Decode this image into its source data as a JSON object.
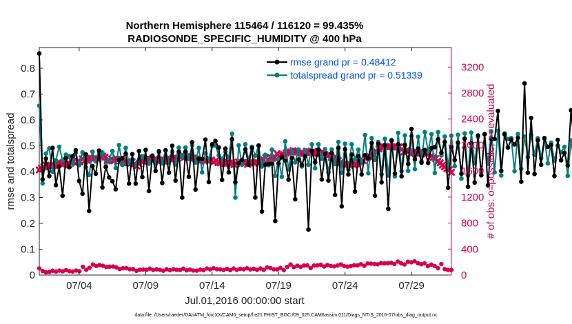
{
  "figure": {
    "title_line1": "Northern Hemisphere 115464 / 116120 = 99.435%",
    "title_line2": "RADIOSONDE_SPECIFIC_HUMIDITY @ 400 hPa",
    "xlabel": "Jul.01,2016 00:00:00 start",
    "footer": "data file: /Users/raeder/DAI/ATM_forcXX/CAM6_setup/f.e21.FHIST_BGC.f09_025.CAM6assim.011/Diags_NTrS_2016-07/obs_diag_output.nc"
  },
  "colors": {
    "rmse": "#000000",
    "spread": "#008080",
    "obs": "#d6004f",
    "legend_text": "#0050ff"
  },
  "chart_data": {
    "type": "line",
    "title": "Northern Hemisphere 115464 / 116120 = 99.435%  RADIOSONDE_SPECIFIC_HUMIDITY @ 400 hPa",
    "xlabel": "Jul.01,2016 00:00:00 start",
    "ylabel": "rmse and totalspread",
    "ylabel_right": "# of obs: o=possible; ×=evaluated",
    "x_unit": "days since Jul.01,2016 00:00:00",
    "x_step": 0.25,
    "xlim": [
      0.0,
      31.0
    ],
    "ylim": [
      0,
      0.88
    ],
    "ylim_right": [
      0,
      3500
    ],
    "xticks": [
      {
        "value": 3,
        "label": "07/04"
      },
      {
        "value": 8,
        "label": "07/09"
      },
      {
        "value": 13,
        "label": "07/14"
      },
      {
        "value": 18,
        "label": "07/19"
      },
      {
        "value": 23,
        "label": "07/24"
      },
      {
        "value": 28,
        "label": "07/29"
      }
    ],
    "yticks": [
      "0",
      "0.1",
      "0.2",
      "0.3",
      "0.4",
      "0.5",
      "0.6",
      "0.7",
      "0.8"
    ],
    "yticks_right": [
      "0",
      "400",
      "800",
      "1200",
      "1600",
      "2000",
      "2400",
      "2800",
      "3200"
    ],
    "grid": false,
    "legend_location": "top-right",
    "series": [
      {
        "name": "rmse",
        "label": "rmse grand pr = 0.48412",
        "axis": "left",
        "values": [
          0.857,
          0.37,
          0.451,
          0.383,
          0.492,
          0.348,
          0.42,
          0.307,
          0.452,
          0.417,
          0.46,
          0.483,
          0.364,
          0.315,
          0.467,
          0.248,
          0.421,
          0.392,
          0.481,
          0.339,
          0.418,
          0.378,
          0.363,
          0.332,
          0.446,
          0.452,
          0.47,
          0.354,
          0.468,
          0.354,
          0.48,
          0.379,
          0.484,
          0.325,
          0.46,
          0.403,
          0.479,
          0.356,
          0.482,
          0.396,
          0.5,
          0.366,
          0.477,
          0.3,
          0.478,
          0.38,
          0.514,
          0.331,
          0.45,
          0.449,
          0.524,
          0.36,
          0.506,
          0.519,
          0.493,
          0.368,
          0.489,
          0.397,
          0.525,
          0.359,
          0.433,
          0.445,
          0.486,
          0.427,
          0.492,
          0.3,
          0.501,
          0.246,
          0.427,
          0.429,
          0.431,
          0.209,
          0.432,
          0.458,
          0.443,
          0.369,
          0.453,
          0.293,
          0.447,
          0.426,
          0.46,
          0.176,
          0.48,
          0.436,
          0.485,
          0.37,
          0.469,
          0.366,
          0.472,
          0.31,
          0.492,
          0.266,
          0.487,
          0.389,
          0.466,
          0.323,
          0.46,
          0.389,
          0.464,
          0.452,
          0.511,
          0.307,
          0.508,
          0.359,
          0.502,
          0.256,
          0.52,
          0.393,
          0.506,
          0.382,
          0.503,
          0.43,
          0.565,
          0.448,
          0.489,
          0.435,
          0.484,
          0.434,
          0.491,
          0.495,
          0.525,
          0.473,
          0.515,
          0.338,
          0.495,
          0.445,
          0.512,
          0.392,
          0.528,
          0.341,
          0.509,
          0.358,
          0.54,
          0.386,
          0.545,
          0.347,
          0.527,
          0.526,
          0.635,
          0.403,
          0.544,
          0.493,
          0.524,
          0.505,
          0.531,
          0.361,
          0.741,
          0.396,
          0.608,
          0.391,
          0.521,
          0.427,
          0.53,
          0.496,
          0.503,
          0.383,
          0.523,
          0.444,
          0.472,
          0.424,
          0.637,
          0.502,
          0.514,
          0.399,
          0.379
        ]
      },
      {
        "name": "totalspread",
        "label": "totalspread grand pr = 0.51339",
        "axis": "left",
        "values": [
          0.655,
          0.355,
          0.47,
          0.49,
          0.4,
          0.444,
          0.496,
          0.445,
          0.466,
          0.46,
          0.431,
          0.474,
          0.425,
          0.475,
          0.417,
          0.387,
          0.477,
          0.44,
          0.465,
          0.474,
          0.42,
          0.445,
          0.48,
          0.414,
          0.503,
          0.426,
          0.492,
          0.433,
          0.447,
          0.427,
          0.447,
          0.46,
          0.452,
          0.431,
          0.463,
          0.43,
          0.475,
          0.432,
          0.483,
          0.436,
          0.478,
          0.428,
          0.493,
          0.458,
          0.493,
          0.45,
          0.503,
          0.435,
          0.492,
          0.397,
          0.471,
          0.45,
          0.499,
          0.501,
          0.463,
          0.45,
          0.477,
          0.456,
          0.547,
          0.3,
          0.502,
          0.427,
          0.506,
          0.446,
          0.496,
          0.462,
          0.5,
          0.42,
          0.465,
          0.425,
          0.485,
          0.384,
          0.447,
          0.38,
          0.517,
          0.409,
          0.481,
          0.436,
          0.486,
          0.42,
          0.482,
          0.427,
          0.506,
          0.413,
          0.506,
          0.449,
          0.487,
          0.397,
          0.486,
          0.429,
          0.515,
          0.396,
          0.508,
          0.408,
          0.506,
          0.448,
          0.485,
          0.433,
          0.541,
          0.394,
          0.53,
          0.446,
          0.515,
          0.39,
          0.527,
          0.385,
          0.523,
          0.382,
          0.55,
          0.402,
          0.54,
          0.403,
          0.538,
          0.41,
          0.535,
          0.44,
          0.553,
          0.479,
          0.545,
          0.395,
          0.553,
          0.463,
          0.536,
          0.418,
          0.539,
          0.421,
          0.542,
          0.373,
          0.548,
          0.386,
          0.551,
          0.433,
          0.535,
          0.387,
          0.544,
          0.431,
          0.556,
          0.397,
          0.558,
          0.385,
          0.548,
          0.526,
          0.53,
          0.402,
          0.546,
          0.411,
          0.536,
          0.456,
          0.542,
          0.465,
          0.529,
          0.452,
          0.527,
          0.432,
          0.512,
          0.443,
          0.501,
          0.475,
          0.496,
          0.384,
          0.521,
          0.43
        ]
      },
      {
        "name": "obs_possible",
        "label": "o=possible",
        "axis": "right",
        "marker": "circle",
        "values": [
          102,
          61,
          41,
          49,
          67,
          53,
          69,
          57,
          76,
          59,
          54,
          70,
          59,
          128,
          82,
          111,
          162,
          139,
          154,
          142,
          124,
          129,
          131,
          118,
          92,
          105,
          106,
          90,
          92,
          65,
          82,
          85,
          80,
          99,
          78,
          88,
          81,
          67,
          89,
          74,
          89,
          82,
          77,
          99,
          72,
          84,
          70,
          68,
          84,
          74,
          101,
          88,
          105,
          90,
          89,
          79,
          94,
          76,
          101,
          80,
          95,
          89,
          105,
          87,
          95,
          81,
          101,
          78,
          118,
          106,
          89,
          88,
          109,
          74,
          125,
          163,
          123,
          143,
          127,
          146,
          148,
          108,
          147,
          149,
          159,
          132,
          155,
          141,
          134,
          146,
          163,
          139,
          130,
          138,
          151,
          150,
          167,
          142,
          178,
          175,
          170,
          166,
          185,
          180,
          181,
          189,
          170,
          207,
          180,
          163,
          205,
          197,
          211,
          182,
          166,
          180,
          138,
          161,
          139,
          106,
          170,
          92,
          79,
          79
        ]
      },
      {
        "name": "obs_evaluated",
        "label": "×=evaluated",
        "axis": "right",
        "marker": "x",
        "values": [
          1619,
          1643,
          1665,
          1691,
          1683,
          1675,
          1680,
          1683,
          1722,
          1725,
          1711,
          1717,
          1709,
          1695,
          1771,
          1749,
          1719,
          1747,
          1742,
          1788,
          1754,
          1767,
          1798,
          1797,
          1789,
          1801,
          1787,
          1837,
          1827,
          1815,
          1756,
          1763,
          1787,
          1759,
          1784,
          1779,
          1750,
          1737,
          1717,
          1727,
          1739,
          1743,
          1708,
          1676,
          1712,
          1754,
          1749,
          1765,
          1799,
          1782,
          1764,
          1783,
          1775,
          1770,
          1762,
          1752,
          1768,
          1786,
          1783,
          1797,
          1796,
          1789,
          1821,
          1843,
          1810,
          1821,
          1804,
          1817,
          1798,
          1787,
          1767,
          1754,
          1778,
          1755,
          1769,
          1757,
          1770,
          1738,
          1759,
          1731,
          1725,
          1737,
          1712,
          1718,
          1726,
          1733,
          1697,
          1713,
          1740,
          1737,
          1734,
          1723,
          1702,
          1728,
          1737,
          1724,
          1745,
          1719,
          1761,
          1775,
          1803,
          1773,
          1815,
          1797,
          1808,
          1869,
          1824,
          1851,
          1852,
          1877,
          1889,
          1894,
          1913,
          1907,
          1893,
          1877,
          1868,
          1874,
          1907,
          1898,
          1887,
          1904,
          1873,
          1873,
          1869,
          1896,
          1857,
          1839,
          1855,
          1807,
          1797,
          1785,
          1759,
          1730,
          1705,
          1700,
          1705,
          1691,
          1706,
          1694,
          1709,
          1745,
          1738,
          1760,
          1797,
          1813,
          1821,
          1857,
          1848,
          1894,
          1940,
          1961,
          1974,
          1977,
          1977,
          1977,
          1969,
          1980,
          1973,
          1973,
          1931,
          1892,
          1913,
          1904,
          1862,
          1887,
          1875,
          1869,
          1887,
          1895,
          1873,
          1863,
          1881,
          1829,
          1808,
          1794,
          1752,
          1727,
          1691,
          1667,
          1637,
          1620,
          1581
        ]
      }
    ]
  }
}
